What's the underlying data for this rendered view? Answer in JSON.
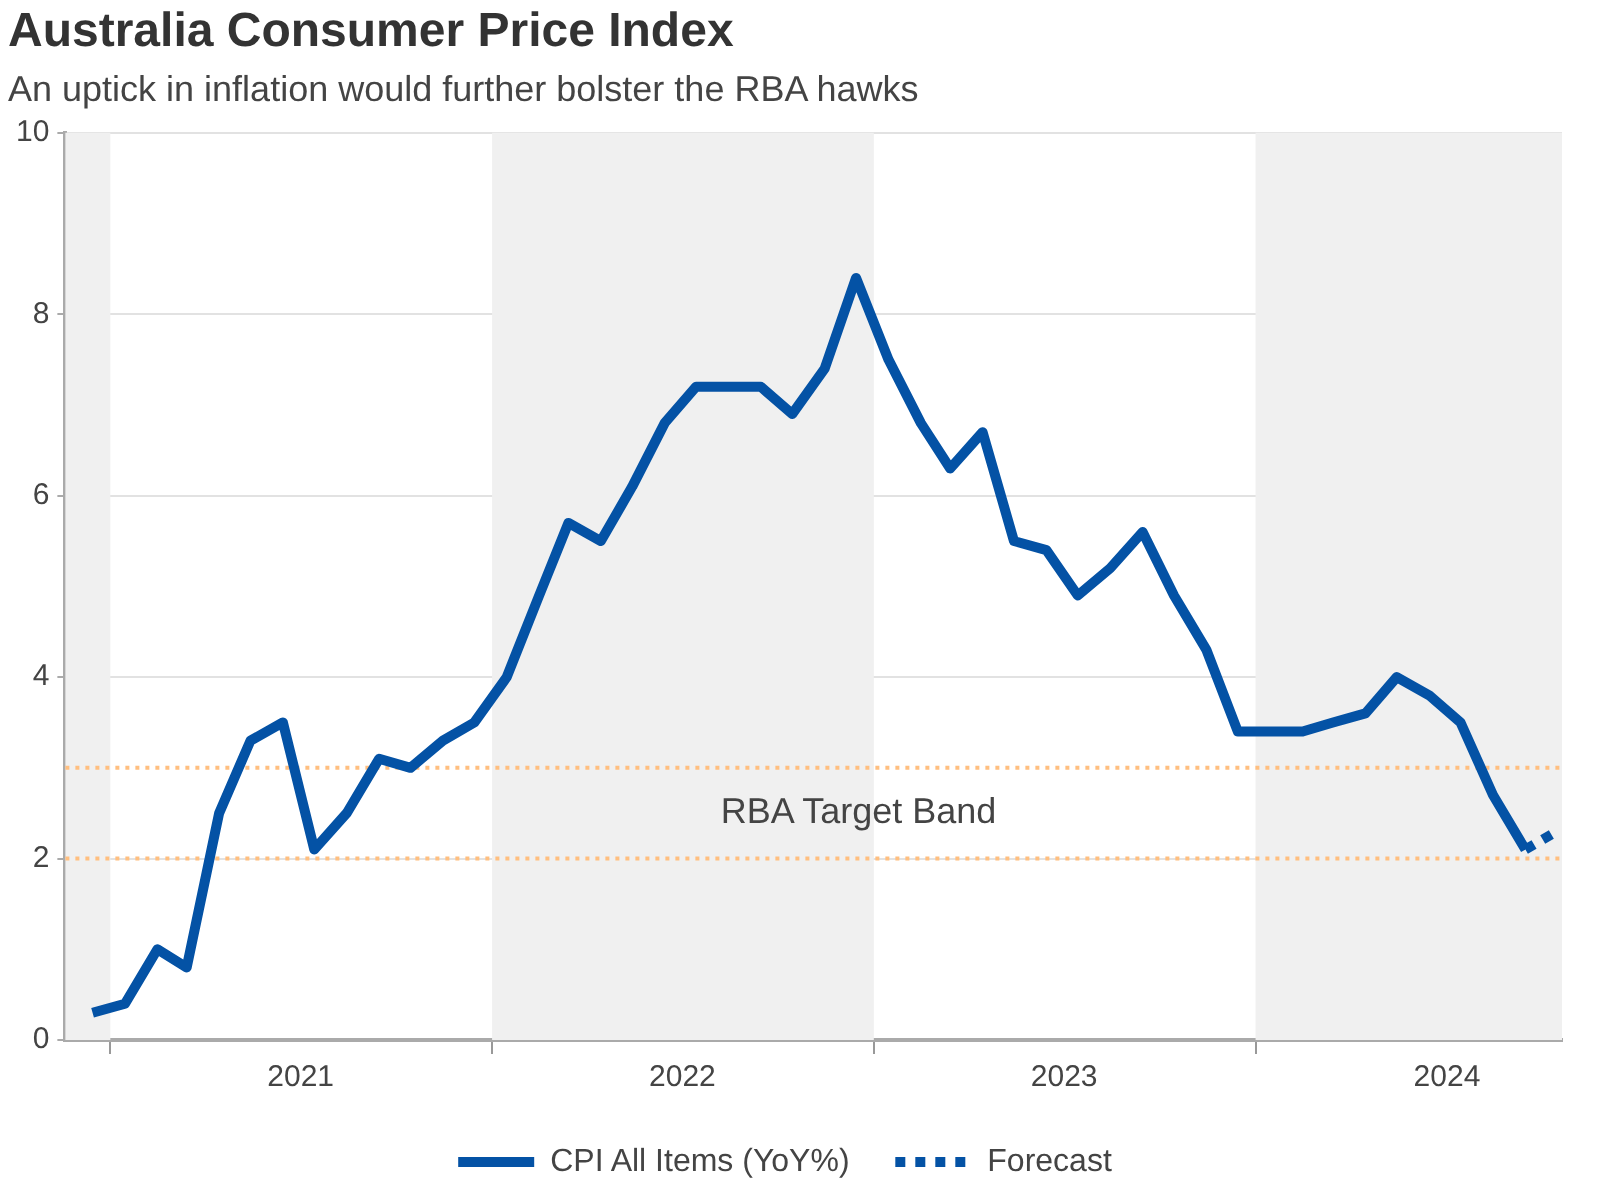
{
  "chart_data": {
    "type": "line",
    "title": "Australia Consumer Price Index",
    "subtitle": "An uptick in inflation would further bolster the RBA hawks",
    "x": [
      "2020-12-15",
      "2021-01-15",
      "2021-02-15",
      "2021-03-15",
      "2021-04-15",
      "2021-05-15",
      "2021-06-15",
      "2021-07-15",
      "2021-08-15",
      "2021-09-15",
      "2021-10-15",
      "2021-11-15",
      "2021-12-15",
      "2022-01-15",
      "2022-02-15",
      "2022-03-15",
      "2022-04-15",
      "2022-05-15",
      "2022-06-15",
      "2022-07-15",
      "2022-08-15",
      "2022-09-15",
      "2022-10-15",
      "2022-11-15",
      "2022-12-15",
      "2023-01-15",
      "2023-02-15",
      "2023-03-15",
      "2023-04-15",
      "2023-05-15",
      "2023-06-15",
      "2023-07-15",
      "2023-08-15",
      "2023-09-15",
      "2023-10-15",
      "2023-11-15",
      "2023-12-15",
      "2024-01-15",
      "2024-02-15",
      "2024-03-15",
      "2024-04-15",
      "2024-05-15",
      "2024-06-15",
      "2024-07-15",
      "2024-08-15",
      "2024-09-15"
    ],
    "series": [
      {
        "name": "CPI All Items (YoY%)",
        "color": "#0452a5",
        "values": [
          0.3,
          0.4,
          1.0,
          0.8,
          2.5,
          3.3,
          3.5,
          2.1,
          2.5,
          3.1,
          3.0,
          3.3,
          3.5,
          4.0,
          4.9,
          5.7,
          5.5,
          6.1,
          6.8,
          7.2,
          7.2,
          7.2,
          6.9,
          7.4,
          8.4,
          7.5,
          6.8,
          6.3,
          6.7,
          5.5,
          5.4,
          4.9,
          5.2,
          5.6,
          4.9,
          4.3,
          3.4,
          3.4,
          3.4,
          3.5,
          3.6,
          4.0,
          3.8,
          3.5,
          2.7,
          2.1
        ]
      },
      {
        "name": "Forecast",
        "color": "#0452a5",
        "line_style": "dotted",
        "x": [
          "2024-09-15",
          "2024-10-15"
        ],
        "values": [
          2.1,
          2.3
        ]
      }
    ],
    "xlim": [
      "2020-11-19",
      "2024-10-20"
    ],
    "xticks": [
      {
        "value": "2021-01-01",
        "label": null
      },
      {
        "value": "2021-07-02",
        "label": "2021"
      },
      {
        "value": "2022-01-01",
        "label": null
      },
      {
        "value": "2022-07-02",
        "label": "2022"
      },
      {
        "value": "2023-01-01",
        "label": null
      },
      {
        "value": "2023-07-02",
        "label": "2023"
      },
      {
        "value": "2024-01-01",
        "label": null
      },
      {
        "value": "2024-07-02",
        "label": "2024"
      }
    ],
    "ylim": [
      0,
      10
    ],
    "yticks": [
      0,
      2,
      4,
      6,
      8,
      10
    ],
    "grid": "y",
    "legend": "bottom",
    "marker": "none",
    "line_style": "solid",
    "bands": [
      {
        "axis": "x",
        "from": "2020-11-19",
        "to": "2021-01-01",
        "color": "#f0f0f0"
      },
      {
        "axis": "x",
        "from": "2022-01-01",
        "to": "2023-01-01",
        "color": "#f0f0f0"
      },
      {
        "axis": "x",
        "from": "2024-01-01",
        "to": "2024-10-20",
        "color": "#f0f0f0"
      }
    ],
    "ref_lines": [
      {
        "axis": "y",
        "value": 2,
        "color": "#ffbf80",
        "line_style": "dotted"
      },
      {
        "axis": "y",
        "value": 3,
        "color": "#ffbf80",
        "line_style": "dotted"
      }
    ],
    "annotations": [
      "RBA Target Band"
    ]
  }
}
